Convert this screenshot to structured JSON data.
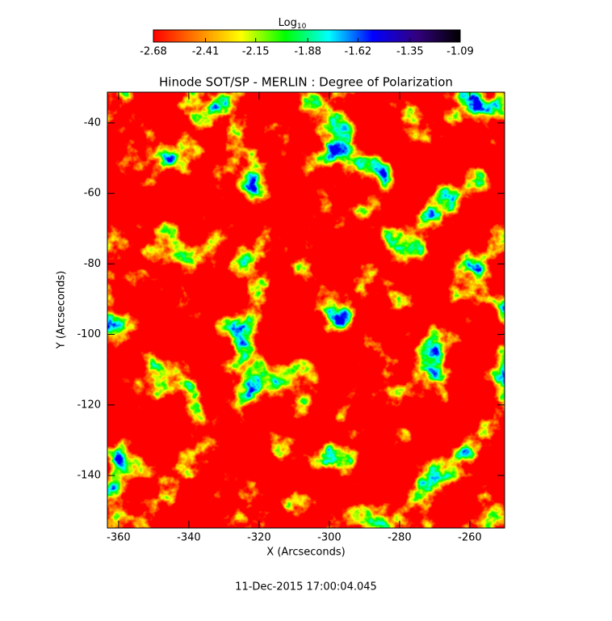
{
  "chart_data": {
    "type": "heatmap",
    "title": "Hinode SOT/SP - MERLIN : Degree of Polarization",
    "xlabel": "X (Arcseconds)",
    "ylabel": "Y (Arcseconds)",
    "xlim": [
      -363.2,
      -250.1
    ],
    "ylim": [
      -154.9,
      -31.3
    ],
    "xticks": [
      -360,
      -340,
      -320,
      -300,
      -280,
      -260
    ],
    "yticks": [
      -40,
      -60,
      -80,
      -100,
      -120,
      -140
    ],
    "colorbar_label": "Log",
    "colorbar_label_sub": "10",
    "zlim": [
      -2.68,
      -1.09
    ],
    "zticks": [
      -2.68,
      -2.41,
      -2.15,
      -1.88,
      -1.62,
      -1.35,
      -1.09
    ],
    "colormap": [
      "#ff0000",
      "#ff8000",
      "#ffff00",
      "#00ff00",
      "#00ffff",
      "#0000ff",
      "#330080",
      "#000000"
    ],
    "footer": "11-Dec-2015 17:00:04.045"
  }
}
